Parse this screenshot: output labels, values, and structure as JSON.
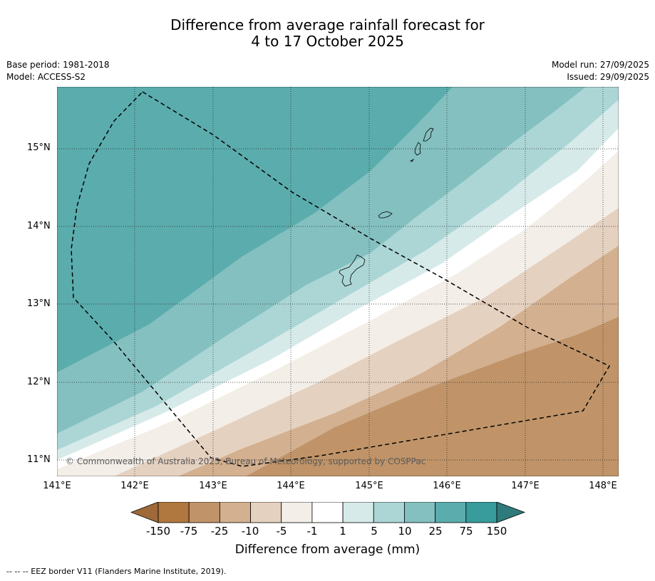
{
  "title": {
    "line1": "Difference from average rainfall forecast for",
    "line2": "4 to 17 October 2025"
  },
  "meta": {
    "base_period": "Base period: 1981-2018",
    "model": "Model: ACCESS-S2",
    "model_run": "Model run: 27/09/2025",
    "issued": "Issued: 29/09/2025"
  },
  "axes": {
    "lat_labels": [
      "15°N",
      "14°N",
      "13°N",
      "12°N",
      "11°N"
    ],
    "lon_labels": [
      "141°E",
      "142°E",
      "143°E",
      "144°E",
      "145°E",
      "146°E",
      "147°E",
      "148°E"
    ],
    "lon_range": [
      141.0,
      148.2
    ],
    "lat_range": [
      10.8,
      15.8
    ]
  },
  "colorbar": {
    "ticks": [
      "-150",
      "-75",
      "-25",
      "-10",
      "-5",
      "-1",
      "1",
      "5",
      "10",
      "25",
      "75",
      "150"
    ],
    "colors": [
      "#a0693a",
      "#b0783e",
      "#c09468",
      "#d3b08f",
      "#e5d1c0",
      "#f3eee8",
      "#ffffff",
      "#d7eaea",
      "#acd6d6",
      "#84c0c0",
      "#5bacad",
      "#389b9c",
      "#2f7a7a"
    ],
    "label": "Difference from average (mm)"
  },
  "copyright": "© Commonwealth of Australia 2025, Bureau of Meteorology, supported by COSPPac",
  "footnote": "--  --  -- EEZ border V11 (Flanders Marine Institute, 2019).",
  "icons": {
    "eez_border": "dashed-line-icon",
    "islands": "coastline-outline-icon"
  }
}
